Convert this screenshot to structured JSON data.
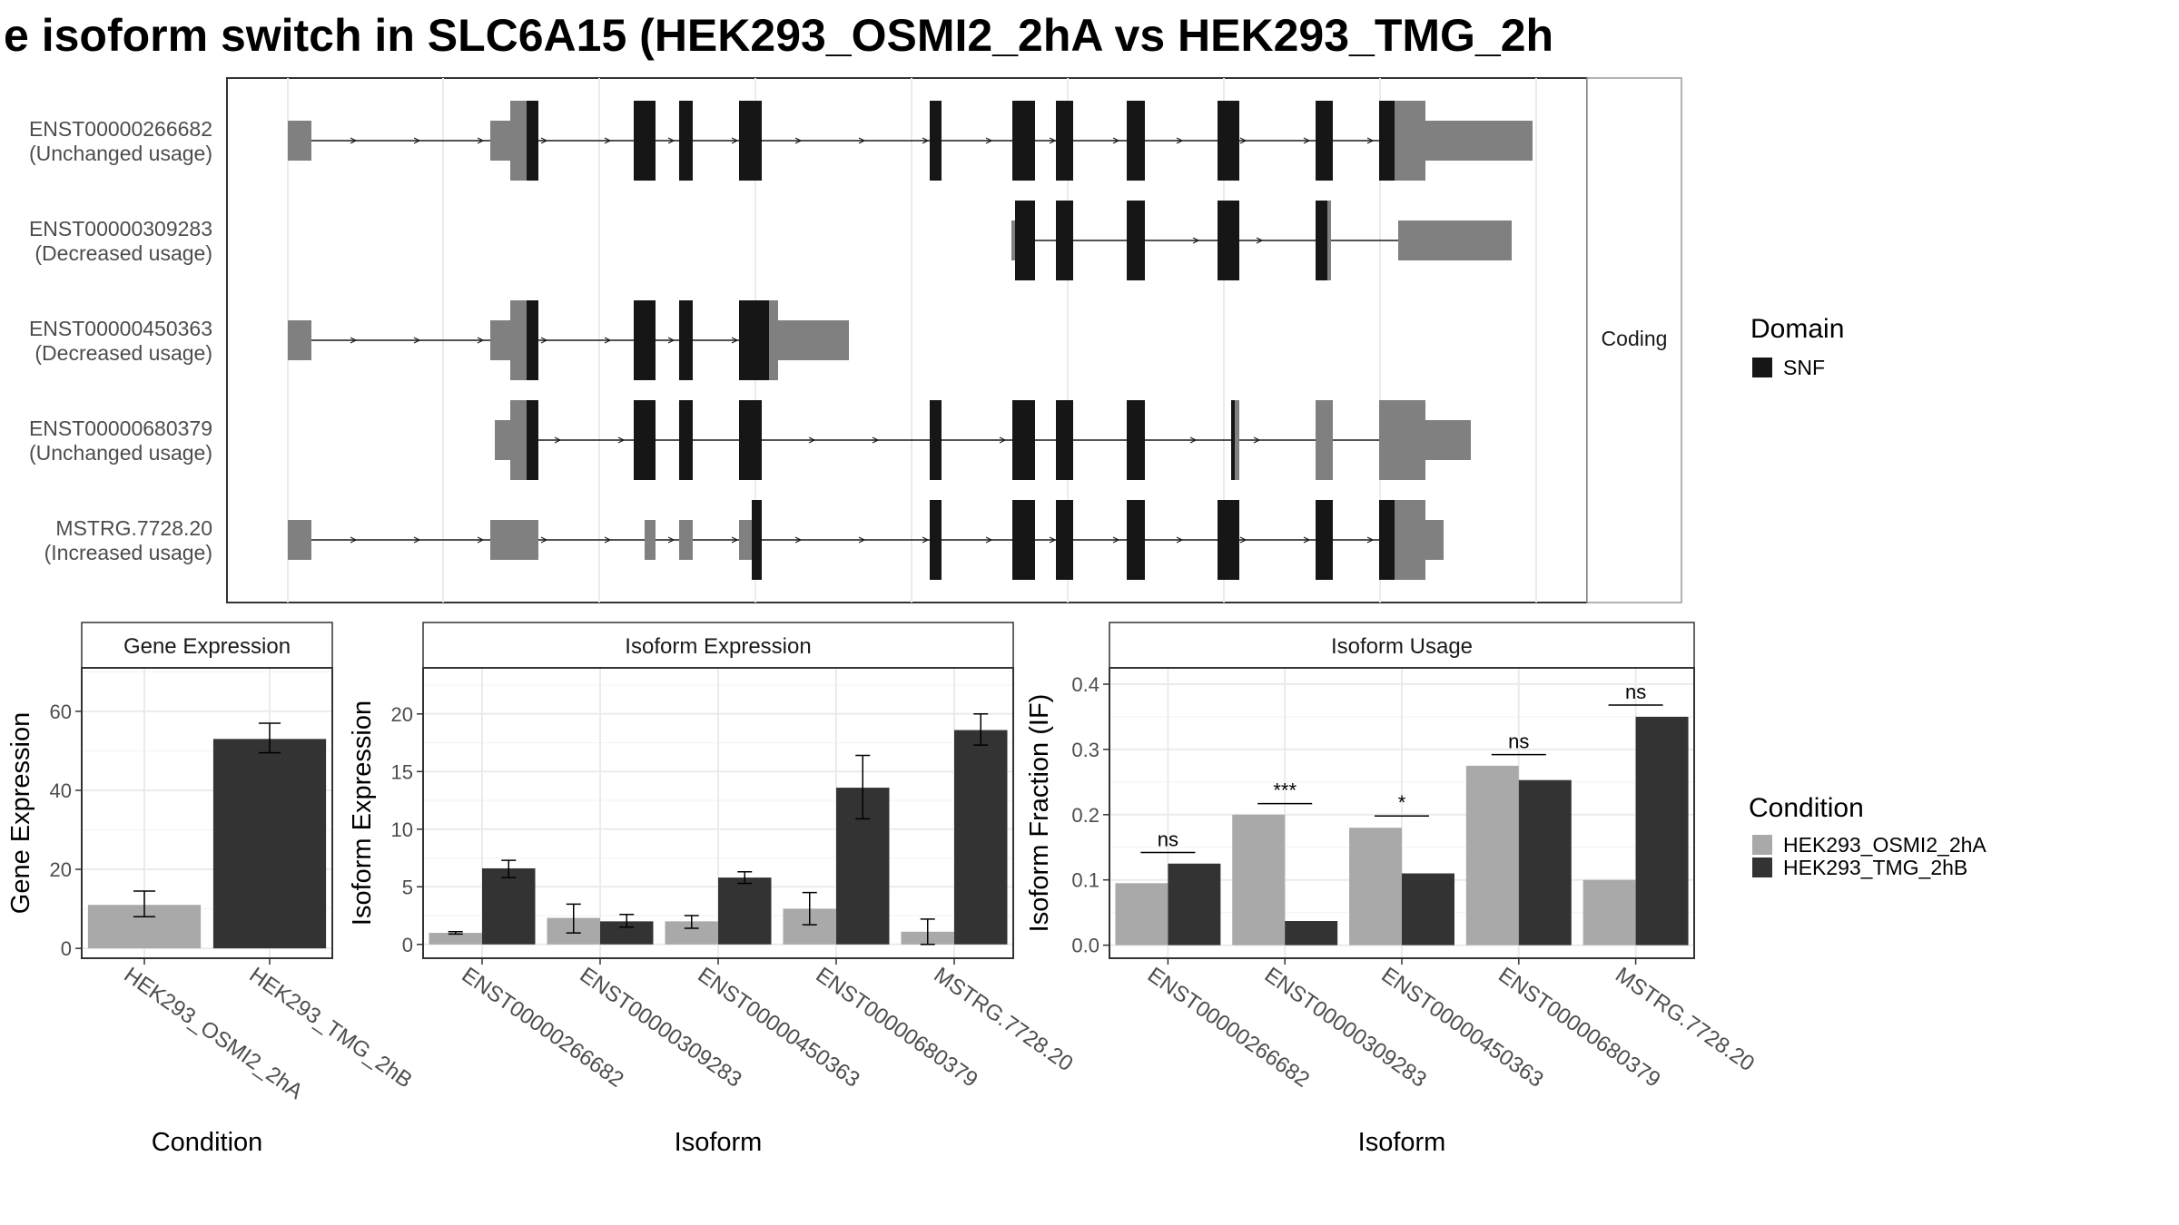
{
  "title": "e isoform switch in SLC6A15 (HEK293_OSMI2_2hA vs HEK293_TMG_2h",
  "colors": {
    "condition_a": "#a9a9a9",
    "condition_b": "#333333",
    "domain": "#161616",
    "exon_noncoding": "#808080",
    "grid": "#ebebeb",
    "panel_border": "#333333",
    "strip_border": "#999999"
  },
  "structure": {
    "facet_label": "Coding",
    "isoforms": [
      {
        "id": "ENST00000266682",
        "usage": "(Unchanged usage)"
      },
      {
        "id": "ENST00000309283",
        "usage": "(Decreased usage)"
      },
      {
        "id": "ENST00000450363",
        "usage": "(Decreased usage)"
      },
      {
        "id": "ENST00000680379",
        "usage": "(Unchanged usage)"
      },
      {
        "id": "MSTRG.7728.20",
        "usage": "(Increased usage)"
      }
    ],
    "legend": {
      "title": "Domain",
      "items": [
        {
          "label": "SNF",
          "color": "#161616"
        }
      ]
    }
  },
  "legend_condition": {
    "title": "Condition",
    "items": [
      {
        "label": "HEK293_OSMI2_2hA",
        "color": "#a9a9a9"
      },
      {
        "label": "HEK293_TMG_2hB",
        "color": "#333333"
      }
    ]
  },
  "chart_data": [
    {
      "type": "bar",
      "panel": "gene",
      "title": "Gene Expression",
      "xlabel": "Condition",
      "ylabel": "Gene Expression",
      "ylim": [
        -2.5,
        71
      ],
      "yticks": [
        0,
        20,
        40,
        60
      ],
      "categories": [
        "HEK293_OSMI2_2hA",
        "HEK293_TMG_2hB"
      ],
      "values": [
        11,
        53
      ],
      "errors": [
        [
          8,
          14.5
        ],
        [
          49.5,
          57
        ]
      ],
      "colors": [
        "#a9a9a9",
        "#333333"
      ]
    },
    {
      "type": "bar",
      "panel": "isoexp",
      "title": "Isoform Expression",
      "xlabel": "Isoform",
      "ylabel": "Isoform Expression",
      "ylim": [
        -1.2,
        24
      ],
      "yticks": [
        0,
        5,
        10,
        15,
        20
      ],
      "categories": [
        "ENST00000266682",
        "ENST00000309283",
        "ENST00000450363",
        "ENST00000680379",
        "MSTRG.7728.20"
      ],
      "series": [
        {
          "name": "HEK293_OSMI2_2hA",
          "values": [
            1.0,
            2.3,
            2.0,
            3.1,
            1.1
          ],
          "errors": [
            [
              0.9,
              1.1
            ],
            [
              1.0,
              3.5
            ],
            [
              1.4,
              2.5
            ],
            [
              1.7,
              4.5
            ],
            [
              0.0,
              2.2
            ]
          ]
        },
        {
          "name": "HEK293_TMG_2hB",
          "values": [
            6.6,
            2.0,
            5.8,
            13.6,
            18.6
          ],
          "errors": [
            [
              5.8,
              7.3
            ],
            [
              1.5,
              2.6
            ],
            [
              5.3,
              6.3
            ],
            [
              10.9,
              16.4
            ],
            [
              17.3,
              20.0
            ]
          ]
        }
      ]
    },
    {
      "type": "bar",
      "panel": "usage",
      "title": "Isoform Usage",
      "xlabel": "Isoform",
      "ylabel": "Isoform Fraction (IF)",
      "ylim": [
        -0.02,
        0.425
      ],
      "yticks": [
        0.0,
        0.1,
        0.2,
        0.3,
        0.4
      ],
      "ytick_labels": [
        "0.0",
        "0.1",
        "0.2",
        "0.3",
        "0.4"
      ],
      "categories": [
        "ENST00000266682",
        "ENST00000309283",
        "ENST00000450363",
        "ENST00000680379",
        "MSTRG.7728.20"
      ],
      "series": [
        {
          "name": "HEK293_OSMI2_2hA",
          "values": [
            0.095,
            0.2,
            0.18,
            0.275,
            0.1
          ]
        },
        {
          "name": "HEK293_TMG_2hB",
          "values": [
            0.125,
            0.037,
            0.11,
            0.253,
            0.35
          ]
        }
      ],
      "significance": [
        "ns",
        "***",
        "*",
        "ns",
        "ns"
      ],
      "significance_y": [
        0.142,
        0.217,
        0.198,
        0.292,
        0.368
      ]
    }
  ]
}
